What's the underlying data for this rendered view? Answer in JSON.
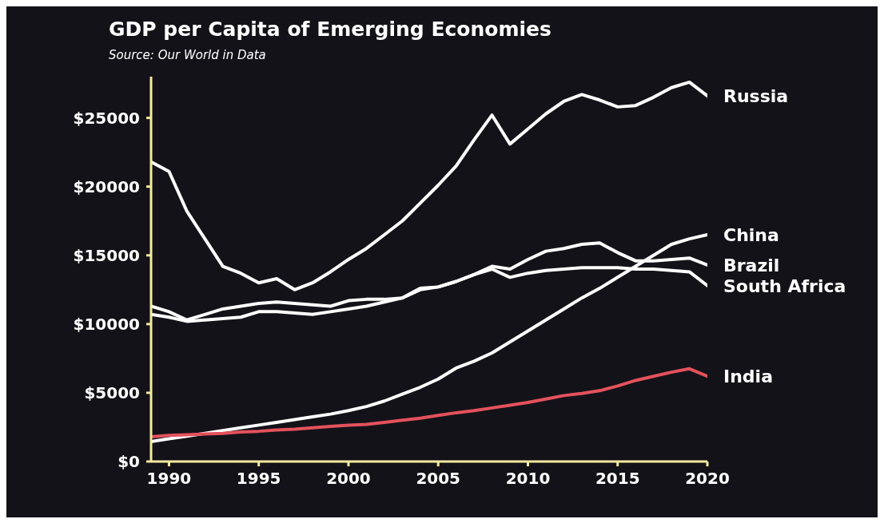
{
  "chart_data": {
    "type": "line",
    "title": "GDP per  Capita of Emerging Economies",
    "subtitle": "Source: Our World in Data",
    "x": [
      1989,
      1990,
      1991,
      1992,
      1993,
      1994,
      1995,
      1996,
      1997,
      1998,
      1999,
      2000,
      2001,
      2002,
      2003,
      2004,
      2005,
      2006,
      2007,
      2008,
      2009,
      2010,
      2011,
      2012,
      2013,
      2014,
      2015,
      2016,
      2017,
      2018,
      2019,
      2020
    ],
    "series": [
      {
        "name": "Russia",
        "color": "#ffffff",
        "values": [
          21800,
          21100,
          18200,
          16200,
          14200,
          13700,
          13000,
          13300,
          12500,
          13000,
          13800,
          14700,
          15500,
          16500,
          17500,
          18800,
          20100,
          21500,
          23400,
          25200,
          23100,
          24200,
          25300,
          26200,
          26700,
          26300,
          25800,
          25900,
          26500,
          27200,
          27600,
          26600
        ]
      },
      {
        "name": "China",
        "color": "#ffffff",
        "values": [
          1450,
          1650,
          1850,
          2050,
          2250,
          2450,
          2650,
          2850,
          3050,
          3250,
          3450,
          3700,
          4000,
          4400,
          4900,
          5400,
          6000,
          6800,
          7300,
          7900,
          8700,
          9500,
          10300,
          11100,
          11900,
          12600,
          13400,
          14200,
          15000,
          15800,
          16200,
          16500
        ]
      },
      {
        "name": "Brazil",
        "color": "#ffffff",
        "values": [
          11300,
          10900,
          10300,
          10700,
          11100,
          11300,
          11500,
          11600,
          11500,
          11400,
          11300,
          11700,
          11800,
          11800,
          11900,
          12500,
          12700,
          13100,
          13600,
          14200,
          14000,
          14700,
          15300,
          15500,
          15800,
          15900,
          15200,
          14600,
          14600,
          14700,
          14800,
          14300
        ]
      },
      {
        "name": "South Africa",
        "color": "#ffffff",
        "values": [
          10700,
          10500,
          10200,
          10300,
          10400,
          10500,
          10900,
          10900,
          10800,
          10700,
          10900,
          11100,
          11300,
          11600,
          11900,
          12600,
          12700,
          13100,
          13600,
          14000,
          13400,
          13700,
          13900,
          14000,
          14100,
          14100,
          14100,
          14000,
          14000,
          13900,
          13800,
          12800
        ]
      },
      {
        "name": "India",
        "color": "#e4525c",
        "values": [
          1800,
          1900,
          1950,
          2000,
          2050,
          2150,
          2200,
          2300,
          2350,
          2450,
          2550,
          2650,
          2700,
          2850,
          3000,
          3150,
          3350,
          3550,
          3700,
          3900,
          4100,
          4300,
          4550,
          4800,
          4950,
          5150,
          5500,
          5900,
          6200,
          6500,
          6750,
          6200
        ]
      }
    ],
    "xlim": [
      1989,
      2020
    ],
    "xticks": [
      1990,
      1995,
      2000,
      2005,
      2010,
      2015,
      2020
    ],
    "ylim": [
      0,
      28000
    ],
    "yticks": [
      {
        "value": 0,
        "label": "$0"
      },
      {
        "value": 5000,
        "label": "$5000"
      },
      {
        "value": 10000,
        "label": "$10000"
      },
      {
        "value": 15000,
        "label": "$15000"
      },
      {
        "value": 20000,
        "label": "$20000"
      },
      {
        "value": 25000,
        "label": "$25000"
      }
    ],
    "grid": false,
    "legend": false,
    "marker": "none",
    "line_style": "solid"
  }
}
